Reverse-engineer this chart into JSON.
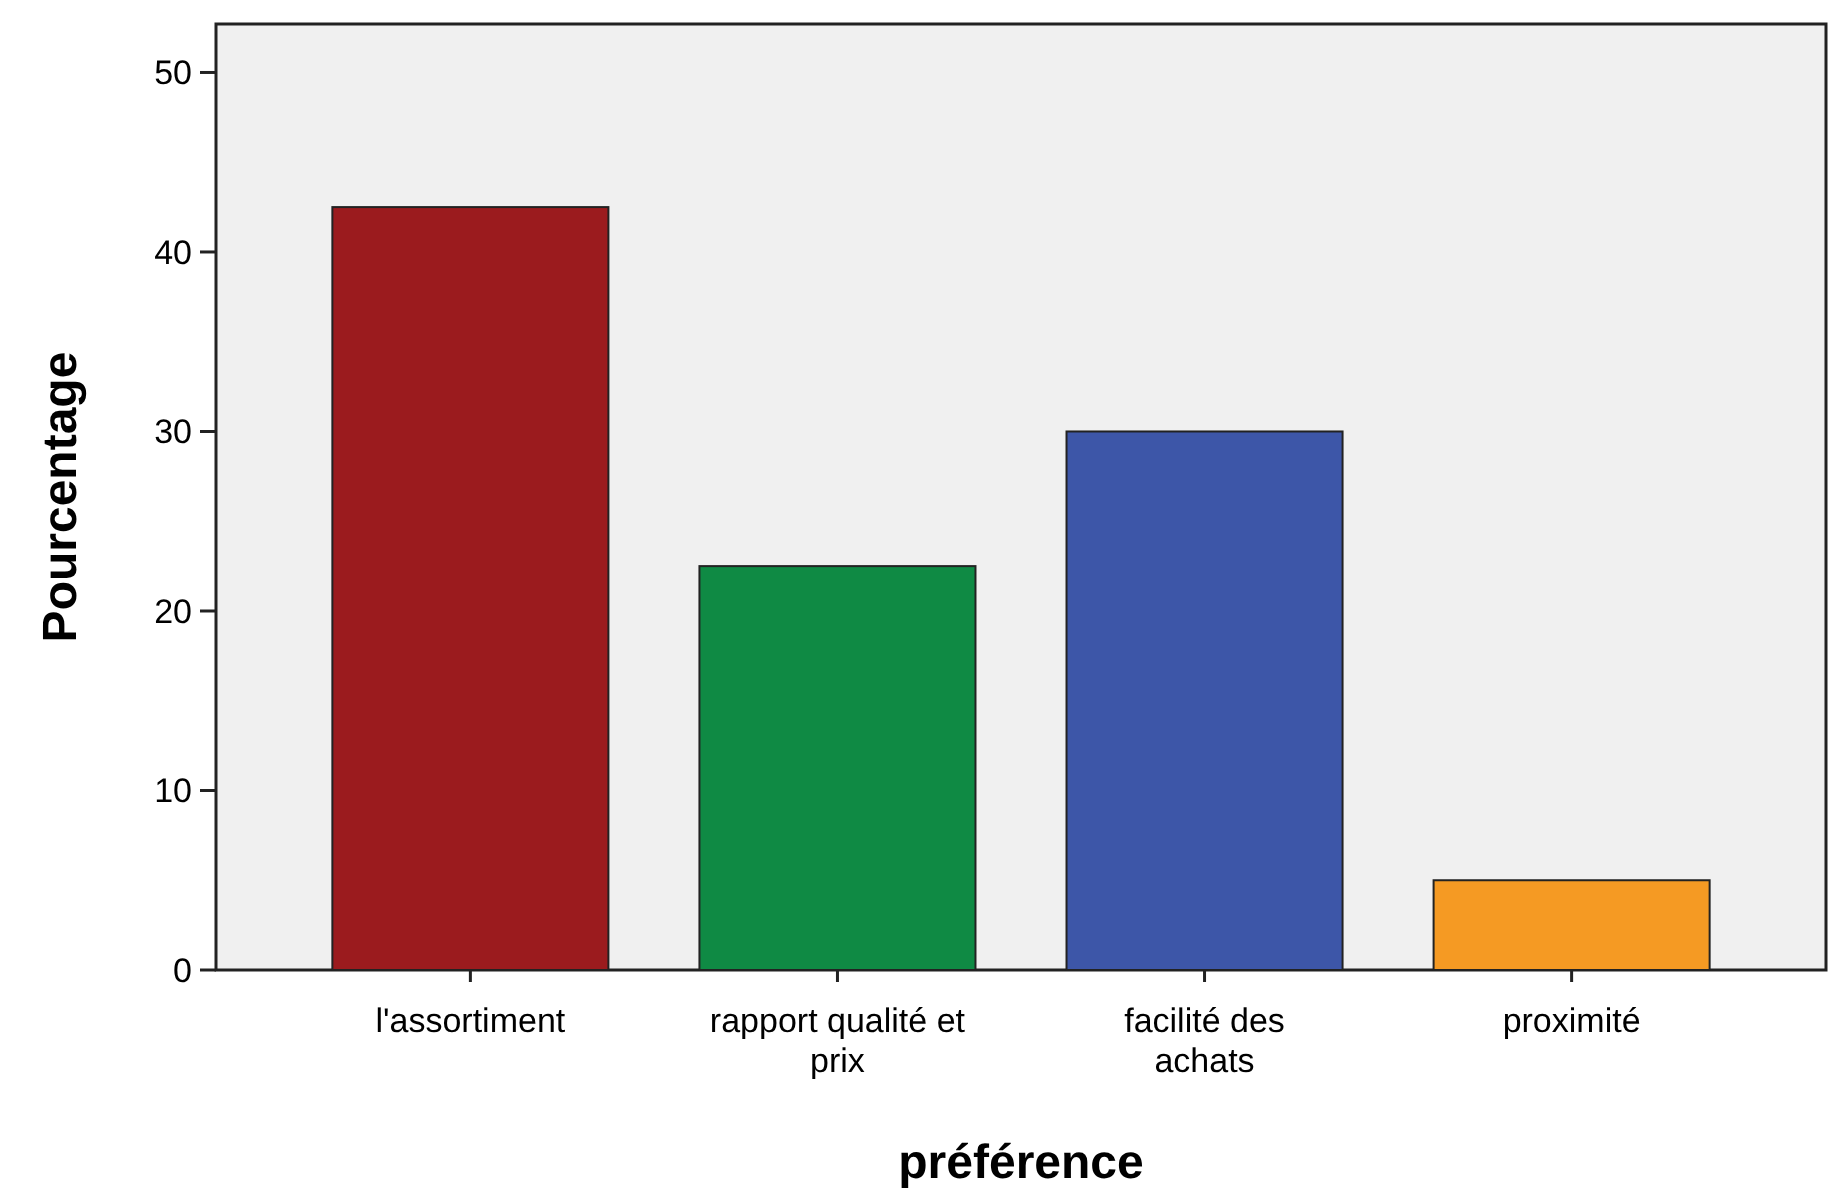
{
  "chart_data": {
    "type": "bar",
    "xlabel": "préférence",
    "ylabel": "Pourcentage",
    "categories": [
      "l'assortiment",
      "rapport qualité et prix",
      "facilité des achats",
      "proximité"
    ],
    "values": [
      42.5,
      22.5,
      30,
      5
    ],
    "colors": [
      "#9b1b1e",
      "#0f8a44",
      "#3d56a8",
      "#f59a23"
    ],
    "ylim": [
      0,
      52.7
    ],
    "yticks": [
      0,
      10,
      20,
      30,
      40,
      50
    ],
    "grid": false
  }
}
